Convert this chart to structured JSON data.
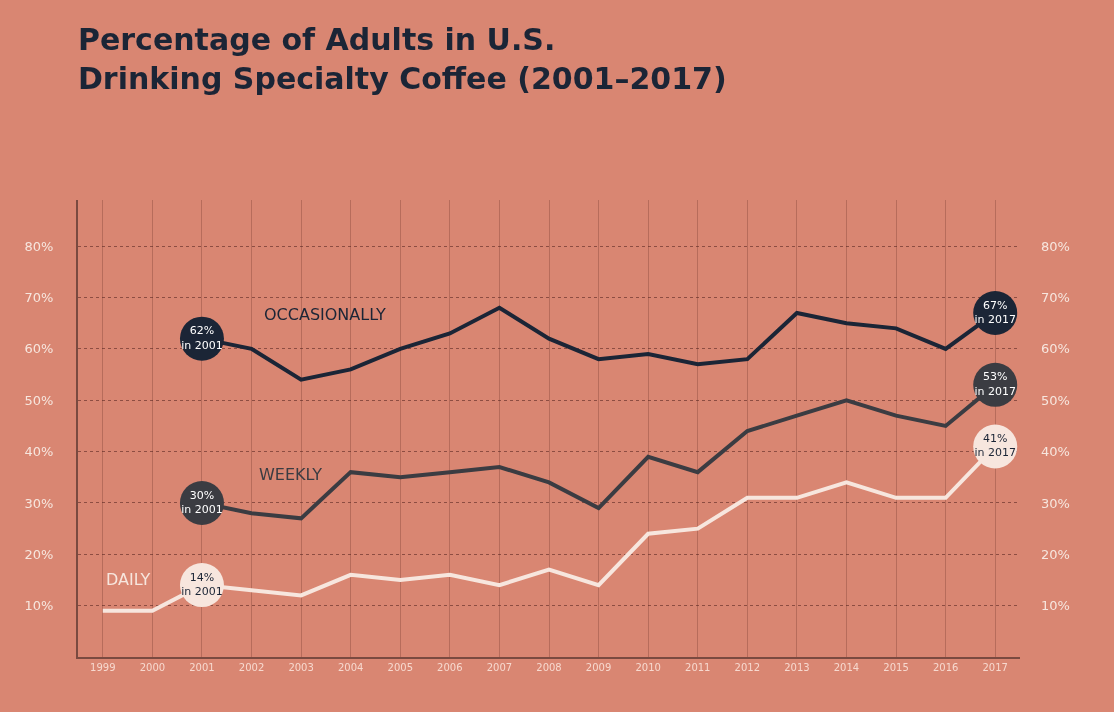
{
  "chart_data": {
    "type": "line",
    "title": "Percentage of Adults in U.S.\nDrinking Specialty Coffee (2001–2017)",
    "x": [
      1999,
      2000,
      2001,
      2002,
      2003,
      2004,
      2005,
      2006,
      2007,
      2008,
      2009,
      2010,
      2011,
      2012,
      2013,
      2014,
      2015,
      2016,
      2017
    ],
    "series": [
      {
        "name": "OCCASIONALLY",
        "color": "#1b2536",
        "values": [
          null,
          null,
          62,
          60,
          54,
          56,
          60,
          63,
          68,
          62,
          58,
          59,
          57,
          58,
          67,
          65,
          64,
          60,
          67
        ],
        "value_labels": [
          null,
          null,
          "62%\nin 2001",
          null,
          null,
          null,
          null,
          null,
          null,
          null,
          null,
          null,
          null,
          null,
          null,
          null,
          null,
          null,
          "67%\nin 2017"
        ]
      },
      {
        "name": "WEEKLY",
        "color": "#3b3c42",
        "values": [
          null,
          null,
          30,
          28,
          27,
          36,
          35,
          36,
          37,
          34,
          29,
          39,
          36,
          44,
          47,
          50,
          47,
          45,
          53
        ],
        "value_labels": [
          null,
          null,
          "30%\nin 2001",
          null,
          null,
          null,
          null,
          null,
          null,
          null,
          null,
          null,
          null,
          null,
          null,
          null,
          null,
          null,
          "53%\nin 2017"
        ]
      },
      {
        "name": "DAILY",
        "color": "#f7e6de",
        "values": [
          9,
          9,
          14,
          13,
          12,
          16,
          15,
          16,
          14,
          17,
          14,
          24,
          25,
          31,
          31,
          34,
          31,
          31,
          41
        ],
        "value_labels": [
          null,
          null,
          "14%\nin 2001",
          null,
          null,
          null,
          null,
          null,
          null,
          null,
          null,
          null,
          null,
          null,
          null,
          null,
          null,
          null,
          "41%\nin 2017"
        ]
      }
    ],
    "xlim": [
      1998.5,
      2017.5
    ],
    "xticks": [
      1999,
      2000,
      2001,
      2002,
      2003,
      2004,
      2005,
      2006,
      2007,
      2008,
      2009,
      2010,
      2011,
      2012,
      2013,
      2014,
      2015,
      2016,
      2017
    ],
    "ylim": [
      0,
      89
    ],
    "yticks": [
      {
        "value": 10,
        "label": "10%"
      },
      {
        "value": 20,
        "label": "20%"
      },
      {
        "value": 30,
        "label": "30%"
      },
      {
        "value": 40,
        "label": "40%"
      },
      {
        "value": 50,
        "label": "50%"
      },
      {
        "value": 60,
        "label": "60%"
      },
      {
        "value": 70,
        "label": "70%"
      },
      {
        "value": 80,
        "label": "80%"
      }
    ],
    "y2lim": [
      0,
      89
    ],
    "y2ticks": [
      {
        "value": 10,
        "label": "10%"
      },
      {
        "value": 20,
        "label": "20%"
      },
      {
        "value": 30,
        "label": "30%"
      },
      {
        "value": 40,
        "label": "40%"
      },
      {
        "value": 50,
        "label": "50%"
      },
      {
        "value": 60,
        "label": "60%"
      },
      {
        "value": 70,
        "label": "70%"
      },
      {
        "value": 80,
        "label": "80%"
      }
    ],
    "grid": true,
    "legend": false,
    "marker": "none",
    "line_style": "solid"
  }
}
